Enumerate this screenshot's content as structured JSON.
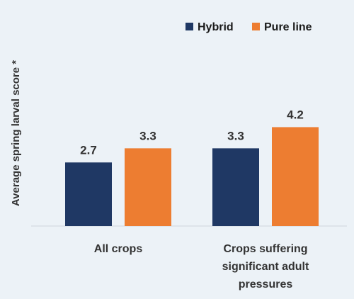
{
  "chart_data": {
    "type": "bar",
    "categories": [
      [
        "All crops"
      ],
      [
        "Crops suffering",
        "significant adult",
        "pressures"
      ]
    ],
    "series": [
      {
        "name": "Hybrid",
        "values": [
          2.7,
          3.3
        ],
        "labels": [
          "2.7",
          "3.3"
        ],
        "color": "#1f3864"
      },
      {
        "name": "Pure line",
        "values": [
          3.3,
          4.2
        ],
        "labels": [
          "3.3",
          "4.2"
        ],
        "color": "#ed7d31"
      }
    ],
    "title": "",
    "xlabel": "",
    "ylabel": "Average spring larval score *",
    "ylim": [
      0,
      9.6
    ],
    "grid": false,
    "legend": "top-right"
  }
}
